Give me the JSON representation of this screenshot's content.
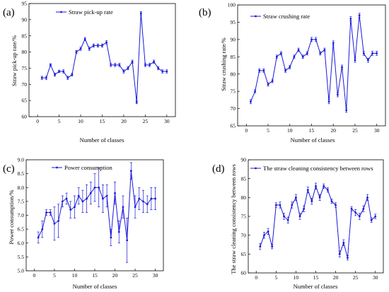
{
  "colors": {
    "series": "#1a1adb",
    "axis": "#000000"
  },
  "chart_data": [
    {
      "type": "line",
      "panel_label": "(a)",
      "xlabel": "Number of classes",
      "ylabel": "Straw pick-up rate/%",
      "xlim": [
        -2,
        32
      ],
      "ylim": [
        60,
        95
      ],
      "xticks": [
        0,
        5,
        10,
        15,
        20,
        25,
        30
      ],
      "yticks": [
        60,
        65,
        70,
        75,
        80,
        85,
        90,
        95
      ],
      "legend_position": "top-left",
      "series": [
        {
          "name": "Straw pick-up rate",
          "x": [
            1,
            2,
            3,
            4,
            5,
            6,
            7,
            8,
            9,
            10,
            11,
            12,
            13,
            14,
            15,
            16,
            17,
            18,
            19,
            20,
            21,
            22,
            23,
            24,
            25,
            26,
            27,
            28,
            29,
            30
          ],
          "values": [
            72,
            72,
            76,
            73,
            74,
            74,
            72,
            73,
            80,
            81,
            84,
            81,
            82,
            82,
            82,
            83,
            76,
            76,
            76,
            74,
            75,
            77,
            64.5,
            92,
            76,
            76,
            77,
            75,
            74,
            74
          ],
          "errors": [
            0.5,
            0.5,
            0.4,
            0.5,
            0.4,
            0.5,
            0.5,
            0.4,
            0.5,
            0.5,
            0.5,
            0.5,
            0.5,
            0.5,
            0.5,
            0.5,
            0.5,
            0.5,
            0.5,
            0.5,
            0.5,
            0.5,
            0.5,
            0.5,
            0.5,
            0.5,
            0.5,
            0.5,
            0.5,
            0.5
          ]
        }
      ]
    },
    {
      "type": "line",
      "panel_label": "(b)",
      "xlabel": "Number of classes",
      "ylabel": "Straw crushing rate/%",
      "xlim": [
        -2,
        32
      ],
      "ylim": [
        65,
        100
      ],
      "xticks": [
        0,
        5,
        10,
        15,
        20,
        25,
        30
      ],
      "yticks": [
        65,
        70,
        75,
        80,
        85,
        90,
        95,
        100
      ],
      "legend_position": "top-left",
      "series": [
        {
          "name": "Straw crushing rate",
          "x": [
            1,
            2,
            3,
            4,
            5,
            6,
            7,
            8,
            9,
            10,
            11,
            12,
            13,
            14,
            15,
            16,
            17,
            18,
            19,
            20,
            21,
            22,
            23,
            24,
            25,
            26,
            27,
            28,
            29,
            30
          ],
          "values": [
            72,
            75,
            81,
            81,
            77,
            78,
            85,
            86,
            81,
            82,
            85,
            87,
            85,
            86,
            90,
            90,
            86,
            87,
            72,
            89,
            74,
            82,
            69.5,
            96,
            84,
            97,
            86,
            84,
            86,
            86
          ],
          "errors": [
            0.6,
            0.5,
            0.5,
            0.5,
            0.5,
            0.5,
            0.5,
            0.5,
            0.5,
            0.5,
            0.5,
            0.5,
            0.5,
            0.5,
            0.6,
            0.6,
            0.5,
            0.5,
            0.6,
            0.6,
            0.6,
            0.6,
            0.6,
            0.6,
            0.6,
            0.6,
            0.6,
            0.6,
            0.6,
            0.6
          ]
        }
      ]
    },
    {
      "type": "line",
      "panel_label": "(c)",
      "xlabel": "Number of classes",
      "ylabel": "Power consumption/%",
      "xlim": [
        -2,
        32
      ],
      "ylim": [
        5.0,
        9.0
      ],
      "xticks": [
        0,
        5,
        10,
        15,
        20,
        25,
        30
      ],
      "yticks": [
        5.0,
        5.5,
        6.0,
        6.5,
        7.0,
        7.5,
        8.0,
        8.5,
        9.0
      ],
      "legend_position": "top-left",
      "series": [
        {
          "name": "Power consumption",
          "x": [
            1,
            2,
            3,
            4,
            5,
            6,
            7,
            8,
            9,
            10,
            11,
            12,
            13,
            14,
            15,
            16,
            17,
            18,
            19,
            20,
            21,
            22,
            23,
            24,
            25,
            26,
            27,
            28,
            29,
            30
          ],
          "values": [
            6.2,
            6.5,
            7.1,
            7.1,
            6.7,
            6.8,
            7.5,
            7.6,
            7.2,
            7.3,
            7.7,
            7.5,
            7.6,
            7.8,
            8.0,
            8.0,
            7.6,
            7.7,
            6.2,
            7.8,
            6.4,
            7.3,
            6.1,
            8.6,
            7.3,
            7.6,
            7.5,
            7.4,
            7.6,
            7.6
          ],
          "errors": [
            0.2,
            0.3,
            0.1,
            0.1,
            0.6,
            0.6,
            0.2,
            0.2,
            0.3,
            0.4,
            0.3,
            0.4,
            0.5,
            0.4,
            0.5,
            0.7,
            0.5,
            0.4,
            0.3,
            0.4,
            0.4,
            0.4,
            0.8,
            0.3,
            0.4,
            0.4,
            0.4,
            0.3,
            0.4,
            0.4
          ]
        }
      ]
    },
    {
      "type": "line",
      "panel_label": "(d)",
      "xlabel": "Number of classes",
      "ylabel": "The straw cleaning consistency between rows",
      "xlim": [
        -2,
        32
      ],
      "ylim": [
        60,
        90
      ],
      "xticks": [
        0,
        5,
        10,
        15,
        20,
        25,
        30
      ],
      "yticks": [
        60,
        65,
        70,
        75,
        80,
        85,
        90
      ],
      "legend_position": "top-left",
      "series": [
        {
          "name": "The straw cleaning consistency between rows",
          "x": [
            1,
            2,
            3,
            4,
            5,
            6,
            7,
            8,
            9,
            10,
            11,
            12,
            13,
            14,
            15,
            16,
            17,
            18,
            19,
            20,
            21,
            22,
            23,
            24,
            25,
            26,
            27,
            28,
            29,
            30
          ],
          "values": [
            67,
            70,
            71,
            67,
            78,
            78,
            75,
            74,
            78,
            80,
            75,
            77,
            82,
            79,
            83,
            80,
            83,
            82,
            79,
            78,
            65,
            68,
            64,
            77,
            76,
            75,
            77,
            80,
            74,
            75
          ],
          "errors": [
            0.8,
            0.8,
            0.8,
            0.6,
            0.6,
            0.8,
            0.8,
            0.8,
            0.8,
            0.8,
            0.8,
            0.8,
            0.8,
            0.8,
            0.8,
            0.8,
            0.6,
            0.6,
            0.6,
            0.6,
            0.8,
            0.8,
            0.6,
            0.6,
            0.8,
            0.8,
            0.8,
            0.8,
            0.6,
            0.6
          ]
        }
      ]
    }
  ]
}
